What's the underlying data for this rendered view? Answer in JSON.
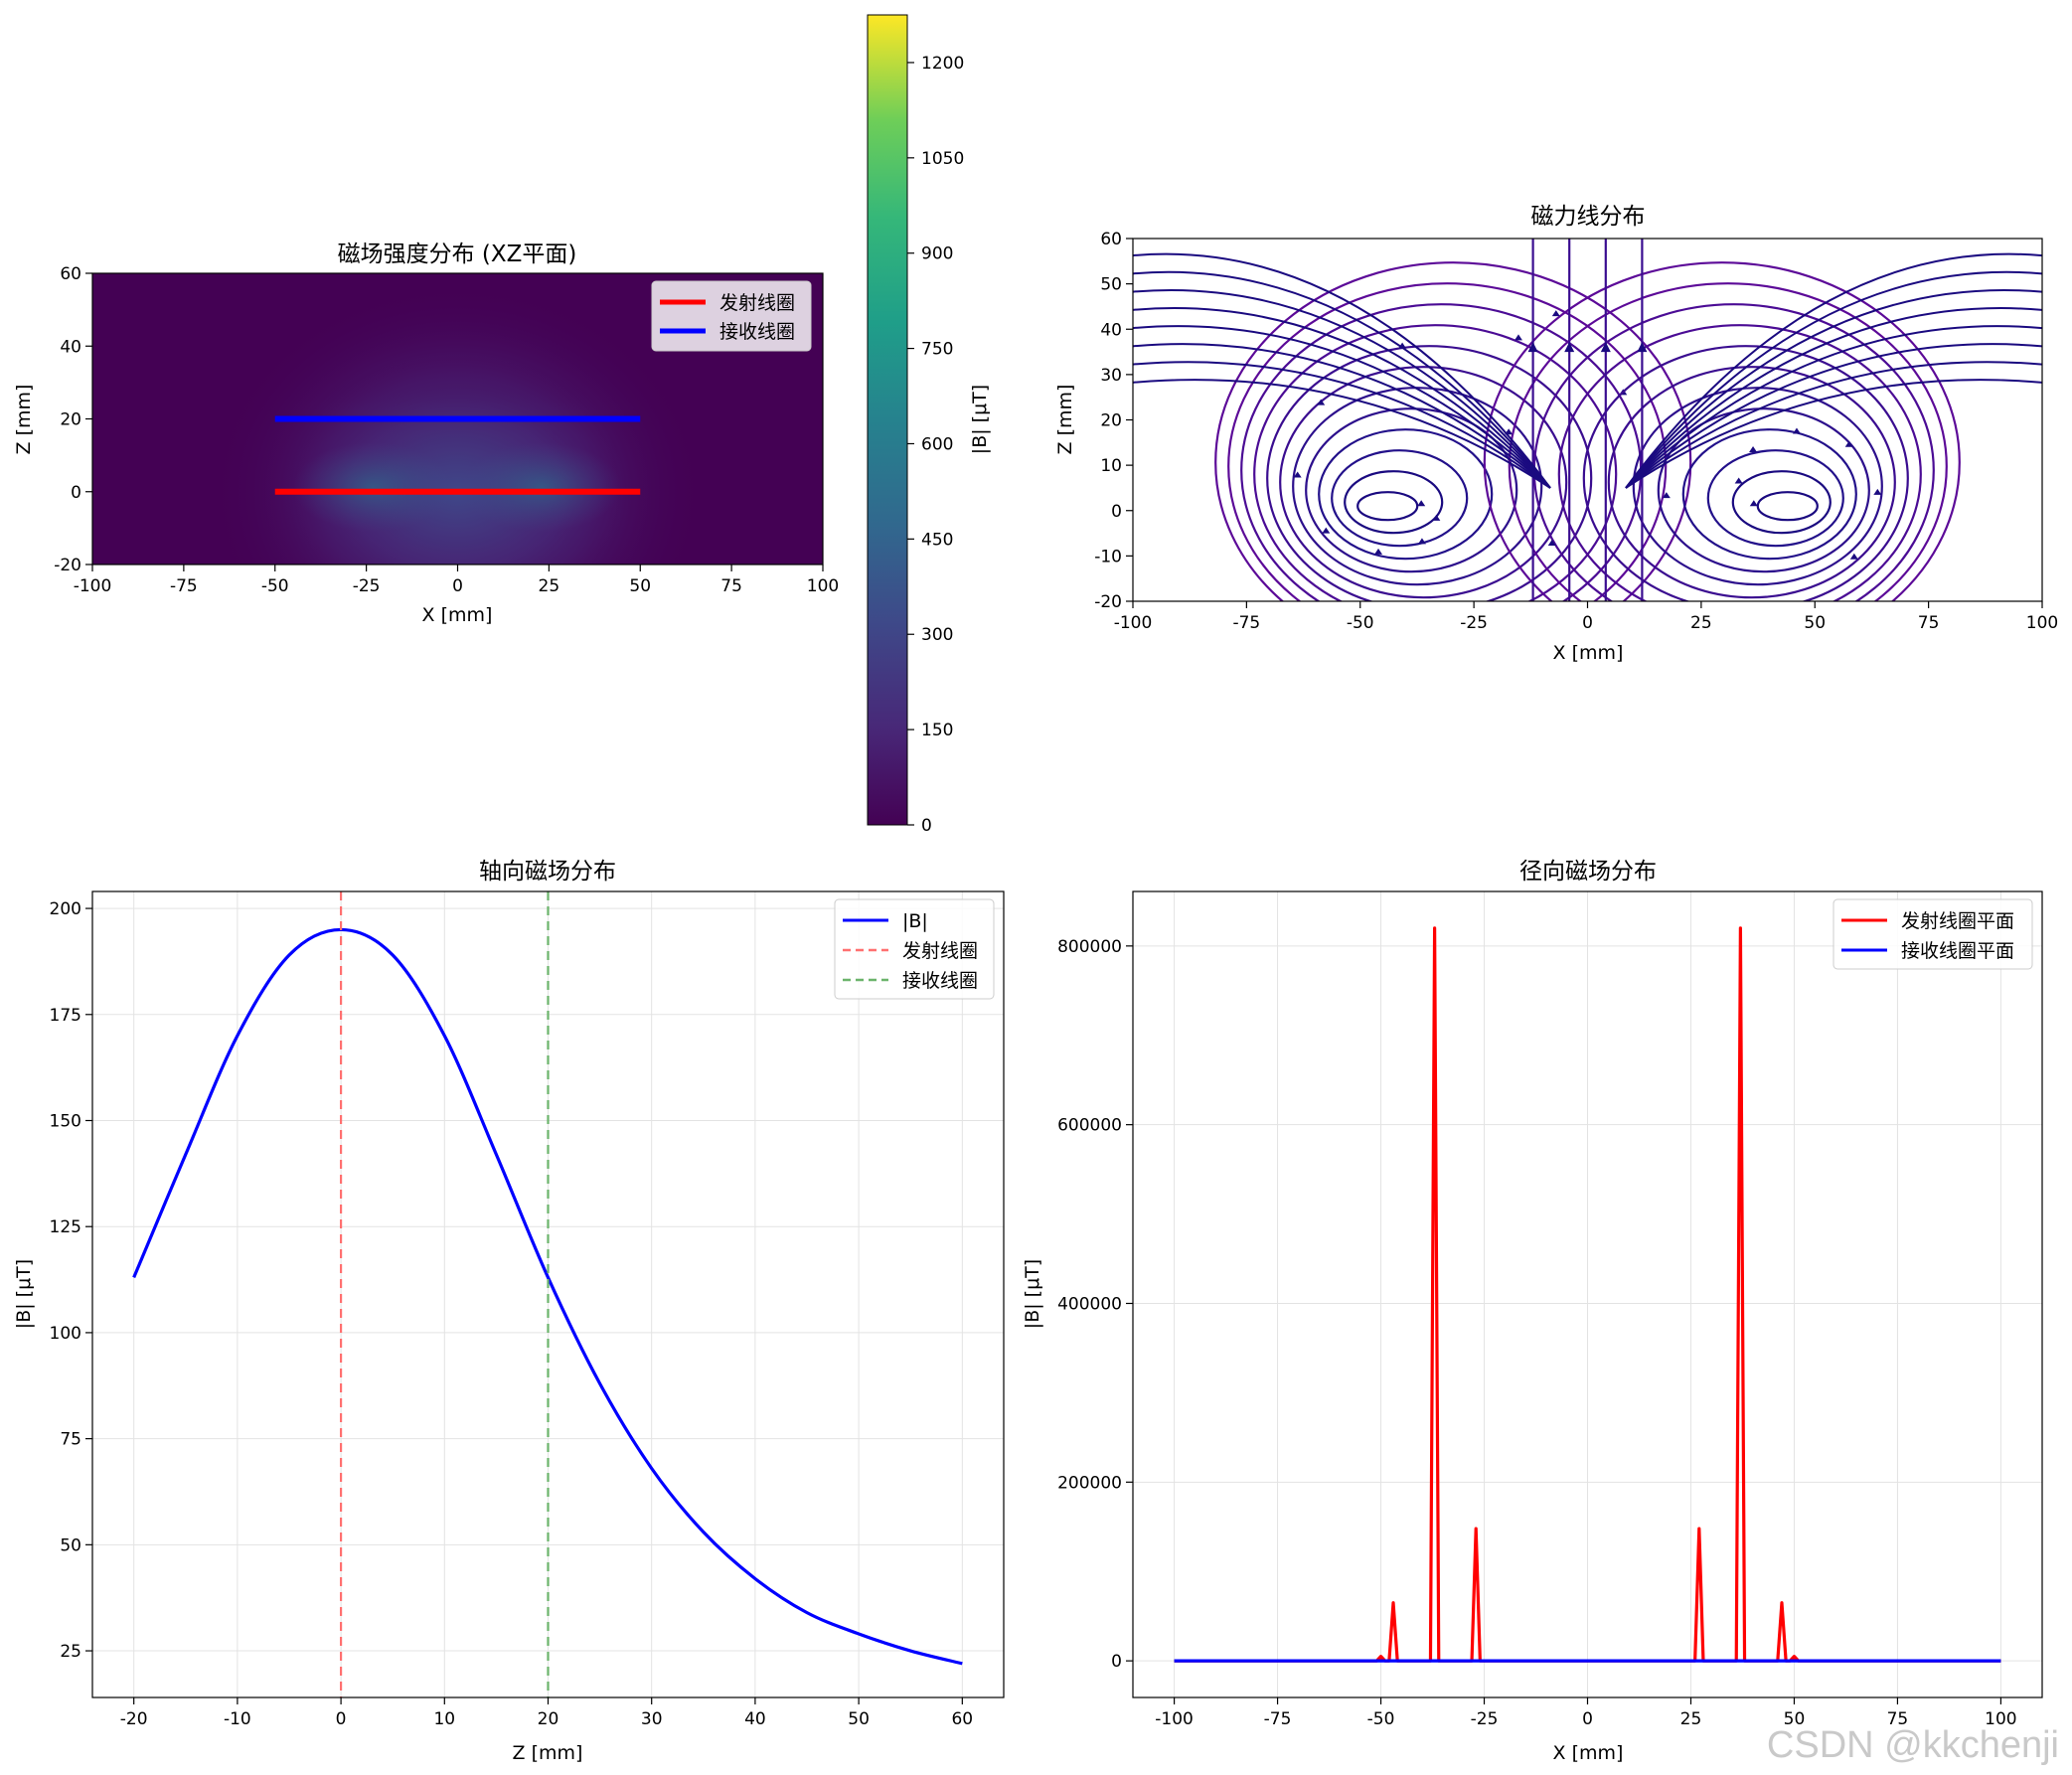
{
  "watermark": "CSDN @kkchenji",
  "chart_data": [
    {
      "type": "heatmap",
      "title": "磁场强度分布 (XZ平面)",
      "xlabel": "X [mm]",
      "ylabel": "Z [mm]",
      "xlim": [
        -100,
        100
      ],
      "ylim": [
        -20,
        60
      ],
      "xticks": [
        -100,
        -75,
        -50,
        -25,
        0,
        25,
        50,
        75,
        100
      ],
      "yticks": [
        -20,
        0,
        20,
        40,
        60
      ],
      "colorbar": {
        "label": "|B| [μT]",
        "range": [
          0,
          1275
        ],
        "ticks": [
          0,
          150,
          300,
          450,
          600,
          750,
          900,
          1050,
          1200
        ]
      },
      "series": [
        {
          "name": "发射线圈",
          "x": [
            -50,
            50
          ],
          "z": [
            0,
            0
          ],
          "color": "#ff0000"
        },
        {
          "name": "接收线圈",
          "x": [
            -50,
            50
          ],
          "z": [
            20,
            20
          ],
          "color": "#0000ff"
        }
      ],
      "legend_position": "top-right"
    },
    {
      "type": "streamplot",
      "title": "磁力线分布",
      "xlabel": "X [mm]",
      "ylabel": "Z [mm]",
      "xlim": [
        -100,
        100
      ],
      "ylim": [
        -20,
        60
      ],
      "xticks": [
        -100,
        -75,
        -50,
        -25,
        0,
        25,
        50,
        75,
        100
      ],
      "yticks": [
        -20,
        -10,
        0,
        10,
        20,
        30,
        40,
        50,
        60
      ],
      "vortex_centers": [
        [
          -44,
          1
        ],
        [
          44,
          1
        ]
      ]
    },
    {
      "type": "line",
      "title": "轴向磁场分布",
      "xlabel": "Z [mm]",
      "ylabel": "|B| [μT]",
      "xlim": [
        -24,
        64
      ],
      "ylim": [
        14,
        204
      ],
      "xticks": [
        -20,
        -10,
        0,
        10,
        20,
        30,
        40,
        50,
        60
      ],
      "yticks": [
        25,
        50,
        75,
        100,
        125,
        150,
        175,
        200
      ],
      "grid": true,
      "series": [
        {
          "name": "|B|",
          "color": "#0000ff",
          "style": "solid",
          "x": [
            -20,
            -15,
            -10,
            -5,
            0,
            5,
            10,
            15,
            20,
            25,
            30,
            35,
            40,
            45,
            50,
            55,
            60
          ],
          "y": [
            113,
            142,
            170,
            189,
            195,
            189,
            170,
            142,
            113,
            88,
            68,
            53,
            42,
            34,
            29,
            25,
            22
          ]
        },
        {
          "name": "发射线圈",
          "color": "#ff7070",
          "style": "dashed",
          "vline": 0
        },
        {
          "name": "接收线圈",
          "color": "#6cb46c",
          "style": "dashed",
          "vline": 20
        }
      ],
      "legend_position": "top-right"
    },
    {
      "type": "line",
      "title": "径向磁场分布",
      "xlabel": "X [mm]",
      "ylabel": "|B| [μT]",
      "xlim": [
        -110,
        110
      ],
      "ylim": [
        -41000,
        861000
      ],
      "xticks": [
        -100,
        -75,
        -50,
        -25,
        0,
        25,
        50,
        75,
        100
      ],
      "yticks": [
        0,
        200000,
        400000,
        600000,
        800000
      ],
      "grid": true,
      "series": [
        {
          "name": "发射线圈平面",
          "color": "#ff0000",
          "x": [
            -100,
            -51,
            -50,
            -49,
            -48,
            -47,
            -46,
            -45,
            -38,
            -37,
            -36,
            -28,
            -27,
            -26,
            -25,
            25,
            26,
            27,
            28,
            36,
            37,
            38,
            45,
            46,
            47,
            48,
            49,
            50,
            51,
            100
          ],
          "y": [
            0,
            0,
            5000,
            0,
            0,
            65000,
            0,
            0,
            0,
            820000,
            0,
            0,
            148000,
            0,
            0,
            0,
            0,
            148000,
            0,
            0,
            820000,
            0,
            0,
            0,
            65000,
            0,
            0,
            5000,
            0,
            0
          ]
        },
        {
          "name": "接收线圈平面",
          "color": "#0000ff",
          "x": [
            -100,
            100
          ],
          "y": [
            0,
            0
          ]
        }
      ],
      "legend_position": "top-right"
    }
  ]
}
